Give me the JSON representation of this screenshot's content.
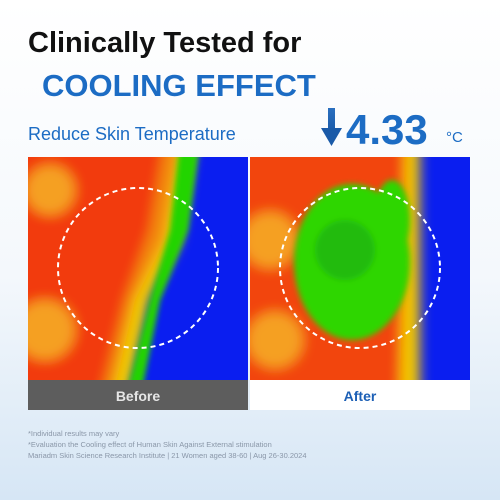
{
  "header": {
    "title": "Clinically Tested for",
    "highlight": "COOLING EFFECT",
    "subtitle": "Reduce Skin Temperature",
    "value": 4.33,
    "unit": "°C"
  },
  "images": [
    {
      "label": "Before"
    },
    {
      "label": "After"
    }
  ],
  "footnotes": [
    "*Individual results may vary",
    "*Evaluation the Cooling effect of Human Skin Against External stimulation",
    "Mariadm Skin Science Research Institute | 21 Women aged 38-60 | Aug 26-30.2024"
  ]
}
